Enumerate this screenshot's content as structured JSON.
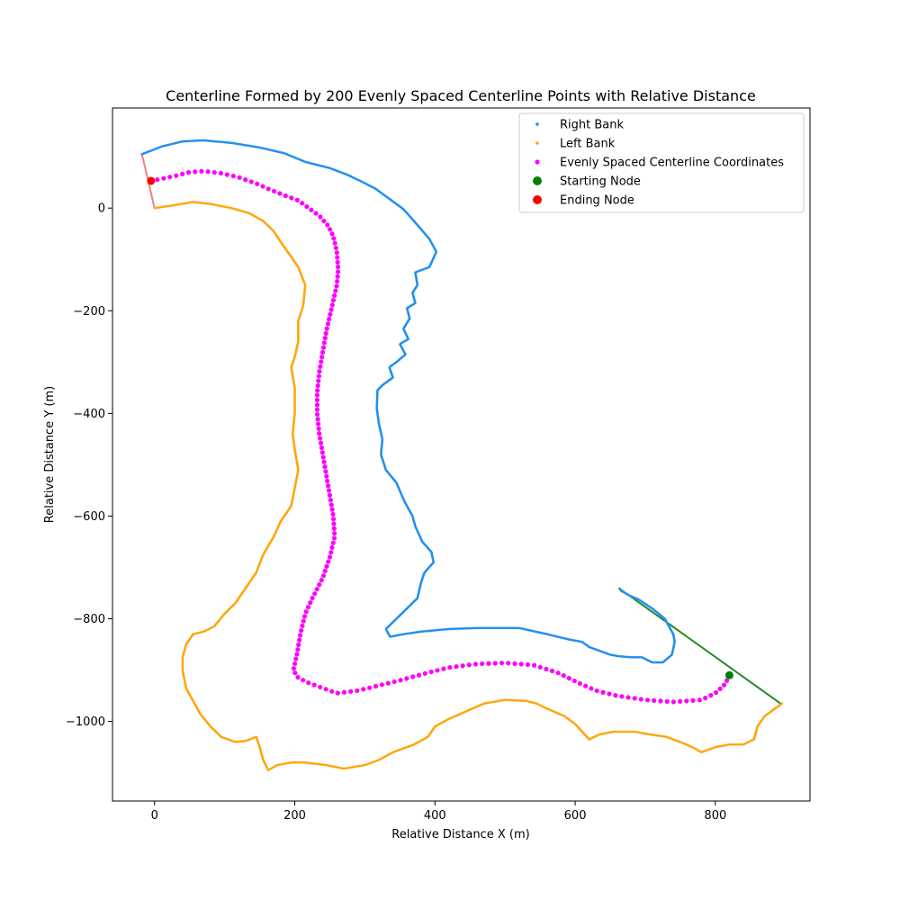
{
  "chart_data": {
    "type": "scatter",
    "title": "Centerline Formed by 200 Evenly Spaced Centerline Points with Relative Distance",
    "xlabel": "Relative Distance X (m)",
    "ylabel": "Relative Distance Y (m)",
    "xlim": [
      -60,
      935
    ],
    "ylim": [
      -1155,
      195
    ],
    "x_ticks": [
      0,
      200,
      400,
      600,
      800
    ],
    "y_ticks": [
      0,
      -200,
      -400,
      -600,
      -800,
      -1000
    ],
    "x_tick_labels": [
      "0",
      "200",
      "400",
      "600",
      "800"
    ],
    "y_tick_labels": [
      "0",
      "−200",
      "−400",
      "−600",
      "−800",
      "−1000"
    ],
    "grid": false,
    "legend_position": "top-right",
    "legend": [
      {
        "label": "Right Bank",
        "color": "#1f8ff0",
        "marker": "small-dot"
      },
      {
        "label": "Left Bank",
        "color": "#ffa500",
        "marker": "small-dot"
      },
      {
        "label": "Evenly Spaced Centerline Coordinates",
        "color": "#ff00ff",
        "marker": "dot"
      },
      {
        "label": "Starting Node",
        "color": "#008000",
        "marker": "large-dot"
      },
      {
        "label": "Ending Node",
        "color": "#ff0000",
        "marker": "large-dot"
      }
    ],
    "series": [
      {
        "name": "Right Bank",
        "color": "#1f8ff0",
        "points": [
          [
            -18,
            105
          ],
          [
            10,
            120
          ],
          [
            40,
            130
          ],
          [
            70,
            132
          ],
          [
            110,
            127
          ],
          [
            150,
            118
          ],
          [
            185,
            107
          ],
          [
            215,
            90
          ],
          [
            250,
            78
          ],
          [
            275,
            65
          ],
          [
            295,
            52
          ],
          [
            315,
            38
          ],
          [
            335,
            18
          ],
          [
            355,
            -2
          ],
          [
            370,
            -25
          ],
          [
            392,
            -60
          ],
          [
            402,
            -85
          ],
          [
            392,
            -115
          ],
          [
            372,
            -125
          ],
          [
            375,
            -150
          ],
          [
            368,
            -165
          ],
          [
            372,
            -185
          ],
          [
            360,
            -195
          ],
          [
            364,
            -215
          ],
          [
            355,
            -235
          ],
          [
            362,
            -255
          ],
          [
            350,
            -265
          ],
          [
            358,
            -285
          ],
          [
            345,
            -300
          ],
          [
            335,
            -310
          ],
          [
            340,
            -330
          ],
          [
            325,
            -345
          ],
          [
            318,
            -355
          ],
          [
            317,
            -390
          ],
          [
            320,
            -420
          ],
          [
            325,
            -450
          ],
          [
            323,
            -480
          ],
          [
            330,
            -510
          ],
          [
            345,
            -535
          ],
          [
            356,
            -570
          ],
          [
            368,
            -600
          ],
          [
            372,
            -620
          ],
          [
            382,
            -650
          ],
          [
            395,
            -670
          ],
          [
            398,
            -690
          ],
          [
            385,
            -710
          ],
          [
            380,
            -730
          ],
          [
            375,
            -760
          ],
          [
            360,
            -780
          ],
          [
            345,
            -800
          ],
          [
            330,
            -820
          ],
          [
            336,
            -835
          ],
          [
            355,
            -830
          ],
          [
            380,
            -825
          ],
          [
            420,
            -820
          ],
          [
            460,
            -818
          ],
          [
            500,
            -818
          ],
          [
            520,
            -818
          ],
          [
            560,
            -830
          ],
          [
            590,
            -840
          ],
          [
            610,
            -845
          ],
          [
            620,
            -855
          ],
          [
            640,
            -865
          ],
          [
            650,
            -870
          ],
          [
            662,
            -873
          ],
          [
            680,
            -875
          ],
          [
            695,
            -875
          ],
          [
            710,
            -885
          ],
          [
            725,
            -885
          ],
          [
            738,
            -870
          ],
          [
            742,
            -845
          ],
          [
            740,
            -830
          ],
          [
            728,
            -800
          ],
          [
            710,
            -780
          ],
          [
            690,
            -762
          ],
          [
            678,
            -755
          ],
          [
            665,
            -745
          ]
        ]
      },
      {
        "name": "Left Bank",
        "color": "#ffa500",
        "points": [
          [
            0,
            0
          ],
          [
            25,
            5
          ],
          [
            55,
            12
          ],
          [
            80,
            8
          ],
          [
            110,
            0
          ],
          [
            135,
            -10
          ],
          [
            155,
            -25
          ],
          [
            170,
            -45
          ],
          [
            182,
            -70
          ],
          [
            195,
            -95
          ],
          [
            205,
            -115
          ],
          [
            215,
            -150
          ],
          [
            212,
            -190
          ],
          [
            205,
            -220
          ],
          [
            205,
            -260
          ],
          [
            200,
            -290
          ],
          [
            195,
            -310
          ],
          [
            200,
            -350
          ],
          [
            200,
            -400
          ],
          [
            197,
            -440
          ],
          [
            200,
            -470
          ],
          [
            205,
            -510
          ],
          [
            200,
            -545
          ],
          [
            195,
            -580
          ],
          [
            180,
            -610
          ],
          [
            170,
            -640
          ],
          [
            155,
            -675
          ],
          [
            145,
            -710
          ],
          [
            130,
            -740
          ],
          [
            115,
            -770
          ],
          [
            100,
            -790
          ],
          [
            85,
            -815
          ],
          [
            70,
            -825
          ],
          [
            55,
            -830
          ],
          [
            45,
            -850
          ],
          [
            40,
            -875
          ],
          [
            40,
            -900
          ],
          [
            45,
            -935
          ],
          [
            55,
            -960
          ],
          [
            65,
            -985
          ],
          [
            80,
            -1010
          ],
          [
            95,
            -1030
          ],
          [
            115,
            -1040
          ],
          [
            130,
            -1038
          ],
          [
            145,
            -1030
          ],
          [
            150,
            -1050
          ],
          [
            155,
            -1075
          ],
          [
            162,
            -1095
          ],
          [
            175,
            -1085
          ],
          [
            195,
            -1080
          ],
          [
            215,
            -1080
          ],
          [
            245,
            -1085
          ],
          [
            270,
            -1092
          ],
          [
            300,
            -1085
          ],
          [
            320,
            -1075
          ],
          [
            340,
            -1060
          ],
          [
            370,
            -1045
          ],
          [
            390,
            -1030
          ],
          [
            400,
            -1010
          ],
          [
            420,
            -995
          ],
          [
            445,
            -980
          ],
          [
            470,
            -965
          ],
          [
            500,
            -958
          ],
          [
            530,
            -960
          ],
          [
            545,
            -965
          ],
          [
            560,
            -975
          ],
          [
            585,
            -990
          ],
          [
            600,
            -1005
          ],
          [
            610,
            -1020
          ],
          [
            620,
            -1035
          ],
          [
            635,
            -1025
          ],
          [
            655,
            -1020
          ],
          [
            685,
            -1020
          ],
          [
            705,
            -1025
          ],
          [
            730,
            -1030
          ],
          [
            750,
            -1040
          ],
          [
            770,
            -1052
          ],
          [
            780,
            -1060
          ],
          [
            800,
            -1050
          ],
          [
            820,
            -1045
          ],
          [
            840,
            -1045
          ],
          [
            855,
            -1035
          ],
          [
            860,
            -1010
          ],
          [
            870,
            -990
          ],
          [
            880,
            -980
          ],
          [
            895,
            -965
          ]
        ]
      },
      {
        "name": "Evenly Spaced Centerline Coordinates",
        "color": "#ff00ff",
        "count": 200,
        "path": [
          [
            -5,
            53
          ],
          [
            10,
            57
          ],
          [
            30,
            63
          ],
          [
            50,
            70
          ],
          [
            70,
            72
          ],
          [
            95,
            68
          ],
          [
            120,
            60
          ],
          [
            145,
            48
          ],
          [
            165,
            36
          ],
          [
            185,
            25
          ],
          [
            205,
            15
          ],
          [
            220,
            0
          ],
          [
            235,
            -15
          ],
          [
            248,
            -35
          ],
          [
            255,
            -55
          ],
          [
            260,
            -85
          ],
          [
            262,
            -120
          ],
          [
            260,
            -150
          ],
          [
            255,
            -180
          ],
          [
            250,
            -210
          ],
          [
            245,
            -240
          ],
          [
            240,
            -280
          ],
          [
            235,
            -320
          ],
          [
            232,
            -360
          ],
          [
            232,
            -400
          ],
          [
            235,
            -440
          ],
          [
            240,
            -480
          ],
          [
            245,
            -520
          ],
          [
            250,
            -560
          ],
          [
            255,
            -600
          ],
          [
            257,
            -640
          ],
          [
            250,
            -680
          ],
          [
            240,
            -720
          ],
          [
            225,
            -760
          ],
          [
            215,
            -790
          ],
          [
            208,
            -830
          ],
          [
            203,
            -870
          ],
          [
            198,
            -900
          ],
          [
            205,
            -915
          ],
          [
            220,
            -925
          ],
          [
            240,
            -935
          ],
          [
            260,
            -945
          ],
          [
            290,
            -940
          ],
          [
            320,
            -930
          ],
          [
            350,
            -920
          ],
          [
            390,
            -905
          ],
          [
            420,
            -895
          ],
          [
            460,
            -888
          ],
          [
            500,
            -886
          ],
          [
            540,
            -890
          ],
          [
            575,
            -905
          ],
          [
            605,
            -925
          ],
          [
            630,
            -940
          ],
          [
            660,
            -950
          ],
          [
            700,
            -958
          ],
          [
            740,
            -962
          ],
          [
            780,
            -958
          ],
          [
            800,
            -945
          ],
          [
            812,
            -930
          ],
          [
            820,
            -912
          ]
        ]
      }
    ],
    "start_node": {
      "x": 820,
      "y": -910,
      "color": "#008000"
    },
    "end_node": {
      "x": -5,
      "y": 53,
      "color": "#ff0000"
    },
    "start_line": {
      "from": [
        662,
        -740
      ],
      "to": [
        895,
        -967
      ],
      "color": "#228b22"
    },
    "end_line": {
      "from": [
        -18,
        105
      ],
      "to": [
        0,
        0
      ],
      "color": "#f08080"
    },
    "bank_gap_line": {
      "from": [
        520,
        -818
      ],
      "to": [
        610,
        -845
      ],
      "color": "#d3d3d3"
    }
  }
}
